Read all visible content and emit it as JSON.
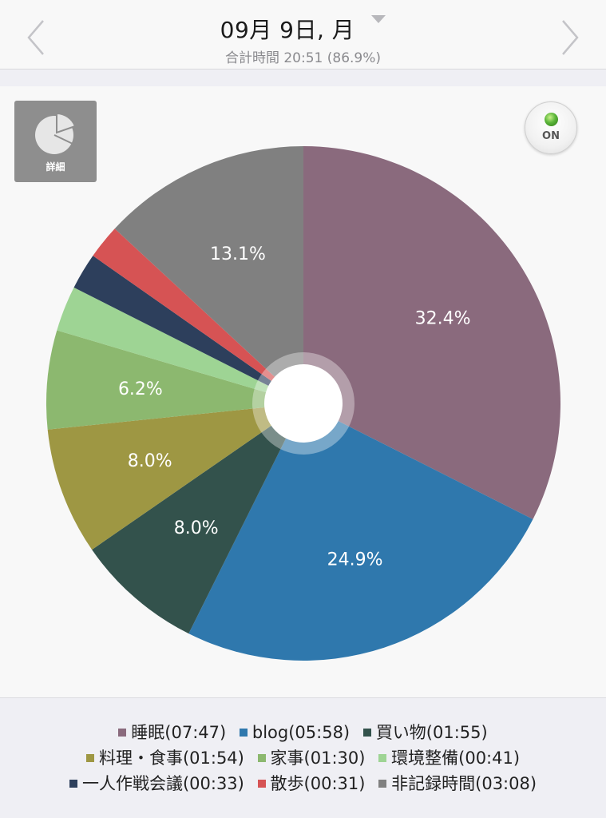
{
  "header": {
    "date": "09月 9日, 月",
    "total": "合計時間 20:51 (86.9%)",
    "prev_icon": "chevron-left-icon",
    "next_icon": "chevron-right-icon",
    "dropdown_icon": "triangle-down-icon"
  },
  "controls": {
    "detail_label": "詳細",
    "detail_icon": "pie-chart-icon",
    "toggle_label": "ON",
    "toggle_color": "#5bb53a"
  },
  "chart_data": {
    "type": "pie",
    "title": "",
    "start_angle_deg": 0,
    "direction": "clockwise",
    "center_hole": true,
    "slices": [
      {
        "label": "睡眠",
        "time": "07:47",
        "percent": 32.4,
        "pct_label": "32.4%",
        "color": "#8a6a7d",
        "label_color": "#ffffff"
      },
      {
        "label": "blog",
        "time": "05:58",
        "percent": 24.9,
        "pct_label": "24.9%",
        "color": "#2f78ad",
        "label_color": "#ffffff"
      },
      {
        "label": "買い物",
        "time": "01:55",
        "percent": 8.0,
        "pct_label": "8.0%",
        "color": "#33524c",
        "label_color": "#ffffff"
      },
      {
        "label": "料理・食事",
        "time": "01:54",
        "percent": 8.0,
        "pct_label": "8.0%",
        "color": "#9e9743",
        "label_color": "#ffffff"
      },
      {
        "label": "家事",
        "time": "01:30",
        "percent": 6.2,
        "pct_label": "6.2%",
        "color": "#8cb86f",
        "label_color": "#ffffff"
      },
      {
        "label": "環境整備",
        "time": "00:41",
        "percent": 2.85,
        "pct_label": "",
        "color": "#9ed494",
        "label_color": "#ffffff"
      },
      {
        "label": "一人作戦会議",
        "time": "00:33",
        "percent": 2.29,
        "pct_label": "",
        "color": "#2d3f5c",
        "label_color": "#ffffff"
      },
      {
        "label": "散歩",
        "time": "00:31",
        "percent": 2.15,
        "pct_label": "",
        "color": "#d65354",
        "label_color": "#ffffff"
      },
      {
        "label": "非記録時間",
        "time": "03:08",
        "percent": 13.1,
        "pct_label": "13.1%",
        "color": "#808080",
        "label_color": "#ffffff"
      }
    ]
  },
  "legend": {
    "rows": [
      [
        {
          "text": "睡眠(07:47)",
          "color": "#8a6a7d"
        },
        {
          "text": "blog(05:58)",
          "color": "#2f78ad"
        },
        {
          "text": "買い物(01:55)",
          "color": "#33524c"
        }
      ],
      [
        {
          "text": "料理・食事(01:54)",
          "color": "#9e9743"
        },
        {
          "text": "家事(01:30)",
          "color": "#8cb86f"
        },
        {
          "text": "環境整備(00:41)",
          "color": "#9ed494"
        }
      ],
      [
        {
          "text": "一人作戦会議(00:33)",
          "color": "#2d3f5c"
        },
        {
          "text": "散歩(00:31)",
          "color": "#d65354"
        },
        {
          "text": "非記録時間(03:08)",
          "color": "#808080"
        }
      ]
    ]
  }
}
